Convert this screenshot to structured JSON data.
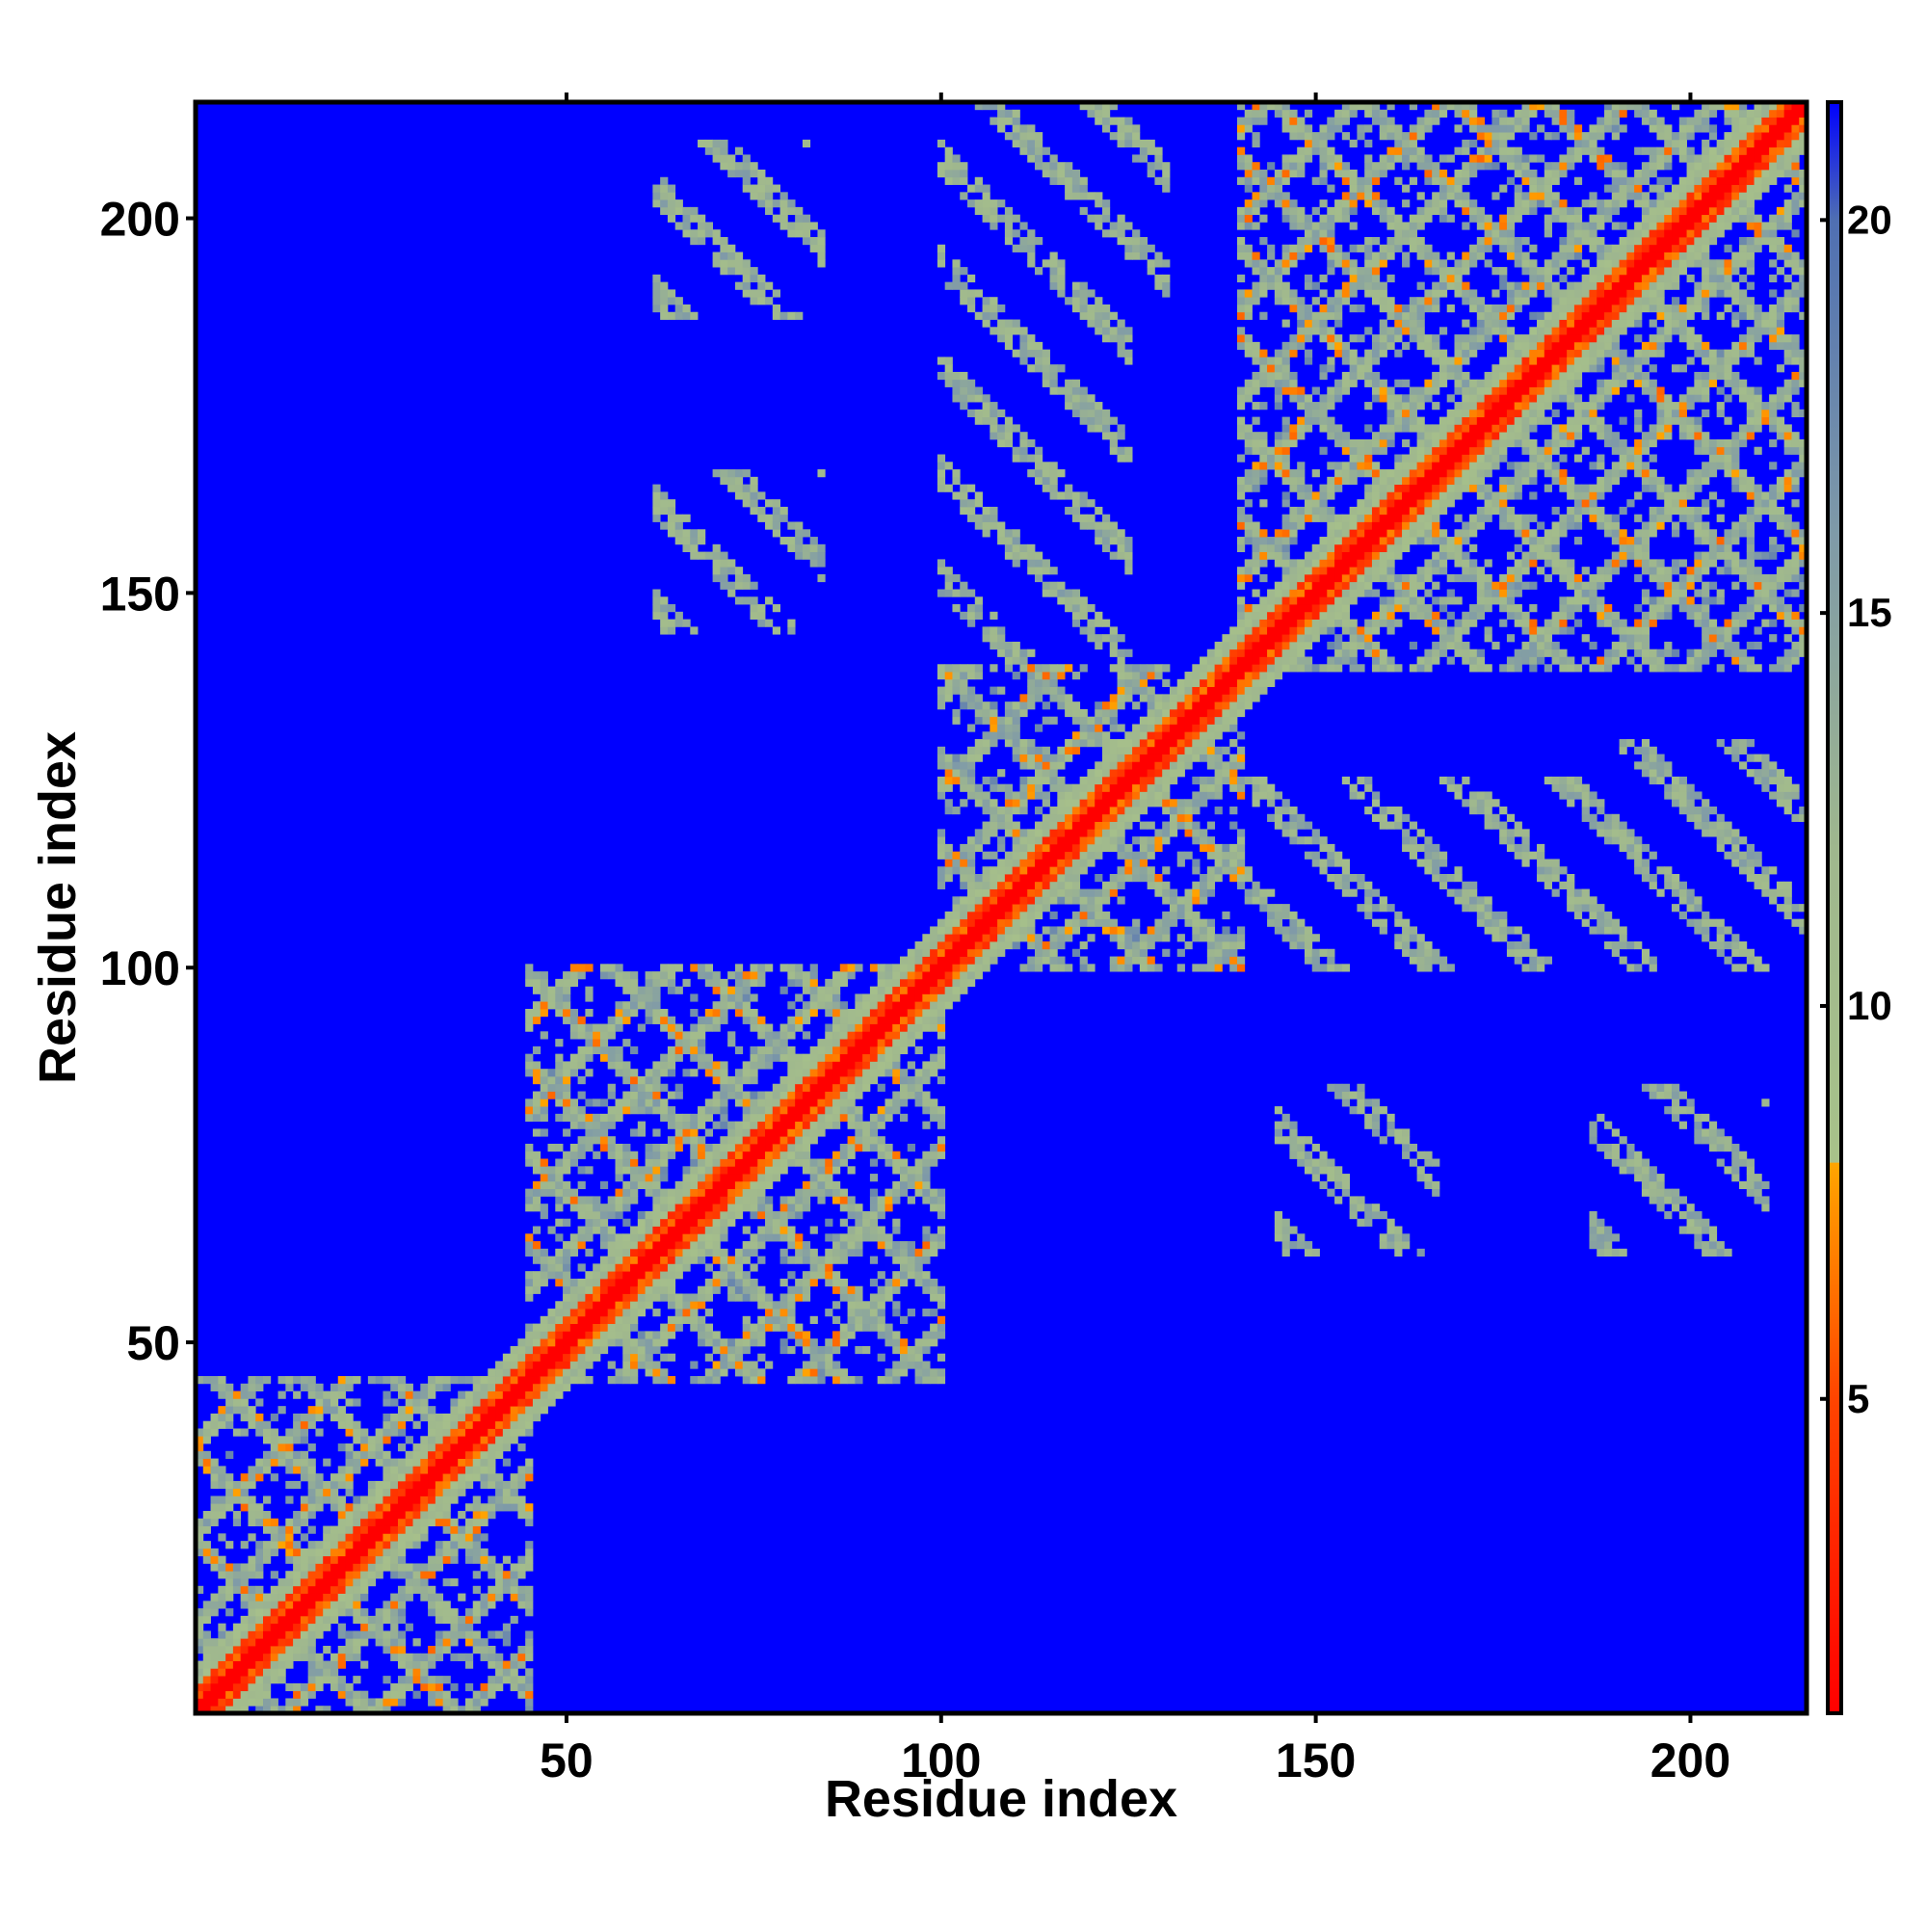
{
  "chart_data": {
    "type": "heatmap",
    "title": "",
    "xlabel": "Residue index",
    "ylabel": "Residue index",
    "n_residues": 215,
    "xlim": [
      1,
      215
    ],
    "ylim": [
      1,
      215
    ],
    "x_ticks": [
      50,
      100,
      150,
      200
    ],
    "y_ticks": [
      50,
      100,
      150,
      200
    ],
    "x_tick_labels": [
      "50",
      "100",
      "150",
      "200"
    ],
    "y_tick_labels": [
      "50",
      "100",
      "150",
      "200"
    ],
    "grid": false,
    "colorbar": {
      "position": "right",
      "range": [
        1,
        21.5
      ],
      "ticks": [
        5,
        10,
        15,
        20
      ],
      "tick_labels": [
        "5",
        "10",
        "15",
        "20"
      ],
      "stops": [
        {
          "value": 1,
          "color": "#ff0000"
        },
        {
          "value": 5,
          "color": "#ff4400"
        },
        {
          "value": 8,
          "color": "#ffa500"
        },
        {
          "value": 8.01,
          "color": "#a8c28a"
        },
        {
          "value": 12,
          "color": "#9fb78e"
        },
        {
          "value": 16,
          "color": "#7f9aa8"
        },
        {
          "value": 20,
          "color": "#4f6fb2"
        },
        {
          "value": 21.5,
          "color": "#0000ff"
        }
      ]
    },
    "background_value": 21.5,
    "background_color": "#0000ff",
    "diagonal_value": 1,
    "domains": [
      {
        "start": 1,
        "end": 45
      },
      {
        "start": 45,
        "end": 100
      },
      {
        "start": 100,
        "end": 140
      },
      {
        "start": 140,
        "end": 215
      }
    ],
    "off_diagonal_blocks": [
      {
        "x": [
          64,
          84
        ],
        "y": [
          188,
          202
        ]
      },
      {
        "x": [
          100,
          130
        ],
        "y": [
          185,
          215
        ]
      },
      {
        "x": [
          64,
          84
        ],
        "y": [
          146,
          166
        ]
      },
      {
        "x": [
          145,
          165
        ],
        "y": [
          62,
          82
        ]
      },
      {
        "x": [
          187,
          210
        ],
        "y": [
          62,
          82
        ]
      },
      {
        "x": [
          140,
          215
        ],
        "y": [
          100,
          125
        ]
      }
    ]
  }
}
